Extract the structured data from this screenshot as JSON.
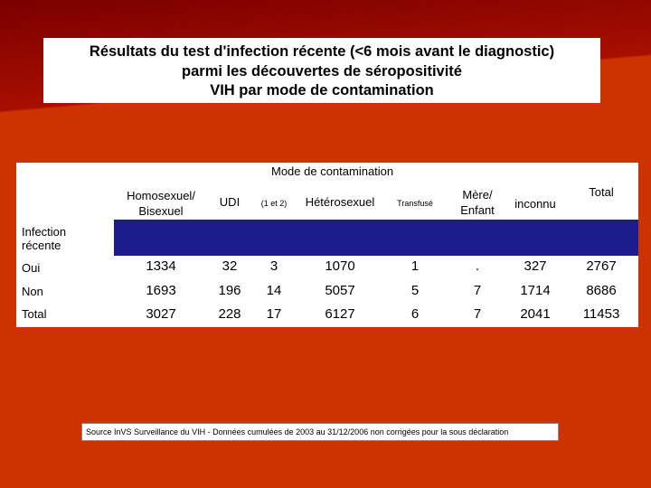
{
  "title": {
    "line1": "Résultats du test d'infection récente (<6 mois avant le diagnostic)",
    "line2": "parmi les découvertes de séropositivité",
    "line3": "VIH par mode de contamination"
  },
  "table": {
    "group_header": "Mode de contamination",
    "row_header_title": "Infection récente",
    "columns": [
      "Homosexuel/ Bisexuel",
      "UDI",
      "(1 et 2)",
      "Hétérosexuel",
      "Transfusé",
      "Mère/ Enfant",
      "inconnu",
      "Total"
    ],
    "rows": [
      {
        "label": "Oui",
        "values": [
          "1334",
          "32",
          "3",
          "1070",
          "1",
          ".",
          "327",
          "2767"
        ]
      },
      {
        "label": "Non",
        "values": [
          "1693",
          "196",
          "14",
          "5057",
          "5",
          "7",
          "1714",
          "8686"
        ]
      },
      {
        "label": "Total",
        "values": [
          "3027",
          "228",
          "17",
          "6127",
          "6",
          "7",
          "2041",
          "11453"
        ]
      }
    ]
  },
  "source": "Source InVS Surveillance du VIH - Données cumulées de 2003 au 31/12/2006 non corrigées pour la sous déclaration",
  "colors": {
    "background": "#cc3300",
    "dark_band": "#8b0000",
    "header_band": "#1c1c8a"
  }
}
